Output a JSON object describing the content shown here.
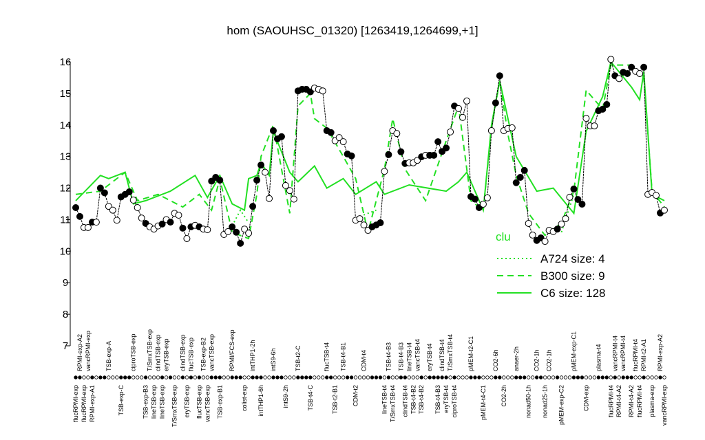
{
  "chart_data": {
    "type": "line",
    "title": "hom (SAOUHSC_01320) [1263419,1264699,+1]",
    "ylim": [
      7,
      16
    ],
    "yticks": [
      7,
      8,
      9,
      10,
      11,
      12,
      13,
      14,
      15,
      16
    ],
    "categories": [
      "flucRPMI-exp",
      "RPMI-exp-A2",
      "flucRPMI-exp",
      "vancRPMI-exp",
      "RPMI-exp-A1",
      null,
      null,
      null,
      "TSB-exp-A",
      null,
      null,
      "TSB-exp-C",
      null,
      null,
      "ciproTSB-exp",
      null,
      null,
      "TSB-exp-B3",
      "T/SmxTSB-exp",
      "lineTSB-exp",
      "clindTSB-exp",
      "lineTSB-exp",
      "eryTSB-exp",
      null,
      "T/SmxTSB-exp",
      null,
      "clindTSB-exp",
      "eryTSB-exp",
      "flucTSB-exp",
      null,
      "flucTSB-exp",
      "TSB-exp-B2",
      "vancTSB-exp",
      "vancTSB-exp",
      null,
      "TSB-exp-B1",
      null,
      null,
      "RPMI/FCS-exp",
      null,
      null,
      "colist-exp",
      null,
      "intTHP1-2h",
      null,
      "intTHP1-6h",
      null,
      null,
      "intS9-6h",
      null,
      null,
      "intS9-2h",
      null,
      null,
      "TSB-t2-C",
      null,
      null,
      "TSB-t4-C",
      null,
      null,
      null,
      "flucTSB-t4",
      null,
      "TSB-t2-B1",
      null,
      "TSB-t4-B1",
      null,
      null,
      "CDM-t2",
      null,
      "CDM-t4",
      null,
      null,
      null,
      null,
      "lineTSB-t4",
      "TSB-t4-B3",
      "T/SmxTSB-t4",
      null,
      "TSB-t4-B3",
      "clindTSB-t4",
      "lineTSB-t4",
      "TSB-t4-B2",
      "vancTSB-t4",
      "TSB-t4-B2",
      null,
      "eryTSB-t4",
      null,
      "TSB-t4-B3",
      "clindTSB-t4",
      "eryTSB-t4",
      "T/SmxTSB-t4",
      "ciproTSB-t4",
      null,
      null,
      null,
      "pMEM-t2-C1",
      null,
      null,
      "pMEM-t4-C1",
      null,
      null,
      "CO2-6h",
      null,
      "CO2-2h",
      null,
      null,
      "anaer-2h",
      null,
      null,
      "nonad50-1h",
      null,
      "CO2-1h",
      null,
      "nonad25-1h",
      "CO2-1h",
      null,
      null,
      "pMEM-exp-C2",
      null,
      null,
      "pMEM-exp-C1",
      null,
      null,
      "CDM-exp",
      null,
      null,
      "plasma-t4",
      null,
      null,
      "flucRPMI-t4",
      "vancRPMI-t4",
      "RPMI-t4-A2",
      "vancRPMI-t4",
      null,
      "RPMI-t4-A2",
      "flucRPMI-t4",
      "flucRPMI-t4",
      "RPMI-t2-A1",
      null,
      "plasma-exp",
      null,
      "RPMI-exp-A2",
      "vancRPMI-exp"
    ],
    "values": [
      11.38,
      11.1,
      10.75,
      10.75,
      10.92,
      10.92,
      12.0,
      11.85,
      11.42,
      11.3,
      10.98,
      11.72,
      11.8,
      11.88,
      11.62,
      11.38,
      11.05,
      10.88,
      10.77,
      10.7,
      10.8,
      10.86,
      11.0,
      10.92,
      11.2,
      11.14,
      10.73,
      10.4,
      10.77,
      10.82,
      10.77,
      10.7,
      10.68,
      12.22,
      12.34,
      12.25,
      10.53,
      10.62,
      10.77,
      10.6,
      10.25,
      10.7,
      10.57,
      11.42,
      12.25,
      12.73,
      12.5,
      11.67,
      13.82,
      13.56,
      13.63,
      12.08,
      11.92,
      11.65,
      15.08,
      15.13,
      15.13,
      15.05,
      15.17,
      15.13,
      15.08,
      13.82,
      13.76,
      13.5,
      13.6,
      13.47,
      13.08,
      13.02,
      10.98,
      11.03,
      10.83,
      10.66,
      10.77,
      10.83,
      10.9,
      12.53,
      13.06,
      13.82,
      13.73,
      13.15,
      12.78,
      12.8,
      12.8,
      12.88,
      12.99,
      13.04,
      13.04,
      13.04,
      13.47,
      13.16,
      13.27,
      13.78,
      14.6,
      14.52,
      14.24,
      14.76,
      11.73,
      11.65,
      11.38,
      11.49,
      11.69,
      13.82,
      14.7,
      15.56,
      13.82,
      13.89,
      13.91,
      12.17,
      12.34,
      12.56,
      10.88,
      10.51,
      10.34,
      10.42,
      10.31,
      10.66,
      10.62,
      10.7,
      10.86,
      11.03,
      11.71,
      11.97,
      11.64,
      11.49,
      14.21,
      13.97,
      13.97,
      14.45,
      14.5,
      14.65,
      16.08,
      15.56,
      15.47,
      15.67,
      15.63,
      15.83,
      15.7,
      15.63,
      15.83,
      11.8,
      11.86,
      11.77,
      11.21,
      11.3
    ],
    "marker_filled": [
      1,
      1,
      0,
      0,
      1,
      0,
      1,
      1,
      0,
      0,
      0,
      1,
      1,
      1,
      0,
      0,
      0,
      1,
      0,
      0,
      0,
      1,
      0,
      1,
      0,
      0,
      1,
      0,
      1,
      0,
      1,
      0,
      0,
      1,
      1,
      1,
      0,
      0,
      1,
      1,
      1,
      0,
      0,
      1,
      1,
      1,
      0,
      0,
      1,
      1,
      1,
      0,
      0,
      0,
      1,
      1,
      1,
      1,
      0,
      0,
      0,
      1,
      1,
      0,
      0,
      0,
      1,
      1,
      0,
      0,
      0,
      0,
      1,
      1,
      1,
      0,
      1,
      0,
      0,
      1,
      1,
      0,
      0,
      0,
      1,
      0,
      1,
      1,
      1,
      1,
      1,
      0,
      1,
      0,
      0,
      0,
      1,
      1,
      1,
      0,
      0,
      0,
      1,
      1,
      0,
      0,
      0,
      1,
      1,
      1,
      0,
      0,
      1,
      1,
      0,
      0,
      0,
      1,
      0,
      0,
      0,
      1,
      1,
      1,
      0,
      0,
      0,
      1,
      1,
      1,
      0,
      1,
      0,
      1,
      1,
      1,
      0,
      0,
      1,
      0,
      0,
      0,
      1,
      0
    ],
    "color": "#000000",
    "legend_title": "clu",
    "series": [
      {
        "name": "A724 size: 4",
        "style": "dotted",
        "color": "#22e022",
        "x": [
          38,
          40,
          42,
          null,
          69,
          73,
          null,
          118,
          121
        ],
        "values": [
          10.8,
          11.3,
          10.9,
          null,
          11.1,
          11.3,
          null,
          10.6,
          11.8
        ]
      },
      {
        "name": "B300 size: 9",
        "style": "dashed",
        "color": "#22e022",
        "x": [
          0,
          6,
          12,
          15,
          20,
          26,
          30,
          33,
          35,
          38,
          42,
          44,
          45,
          48,
          52,
          54,
          57,
          58,
          61,
          65,
          68,
          71,
          75,
          77,
          80,
          85,
          90,
          93,
          96,
          99,
          101,
          103,
          105,
          107,
          110,
          114,
          118,
          121,
          124,
          128,
          130,
          135,
          138,
          140,
          143
        ],
        "values": [
          11.8,
          11.9,
          12.5,
          11.6,
          11.8,
          11.4,
          11.8,
          11.3,
          12.3,
          10.6,
          10.4,
          11.8,
          13.0,
          14.0,
          11.2,
          14.6,
          15.0,
          14.2,
          13.9,
          13.0,
          12.3,
          10.6,
          12.6,
          14.2,
          12.6,
          11.6,
          13.5,
          14.6,
          11.6,
          11.3,
          13.9,
          15.4,
          13.7,
          12.4,
          11.2,
          10.5,
          10.9,
          11.9,
          15.1,
          14.5,
          15.9,
          15.9,
          15.5,
          11.9,
          11.4
        ]
      },
      {
        "name": "C6 size: 128",
        "style": "solid",
        "color": "#22e022",
        "x": [
          0,
          6,
          8,
          12,
          14,
          17,
          23,
          29,
          32,
          35,
          38,
          41,
          42,
          44,
          45,
          47,
          48,
          52,
          54,
          58,
          61,
          65,
          68,
          73,
          75,
          81,
          90,
          93,
          95,
          99,
          101,
          103,
          105,
          107,
          112,
          116,
          121,
          124,
          128,
          130,
          135,
          137,
          138,
          140,
          143
        ],
        "values": [
          11.6,
          12.4,
          12.3,
          12.5,
          11.5,
          11.6,
          11.9,
          12.4,
          11.7,
          12.4,
          11.5,
          11.3,
          12.3,
          12.4,
          12.8,
          12.4,
          13.8,
          12.5,
          12.2,
          12.7,
          12.0,
          12.3,
          11.8,
          12.2,
          11.8,
          12.1,
          11.9,
          12.2,
          12.5,
          11.3,
          14.0,
          15.4,
          14.2,
          13.0,
          11.9,
          12.0,
          11.2,
          13.8,
          14.9,
          16.0,
          15.2,
          14.8,
          15.7,
          11.8,
          11.6
        ]
      }
    ]
  }
}
